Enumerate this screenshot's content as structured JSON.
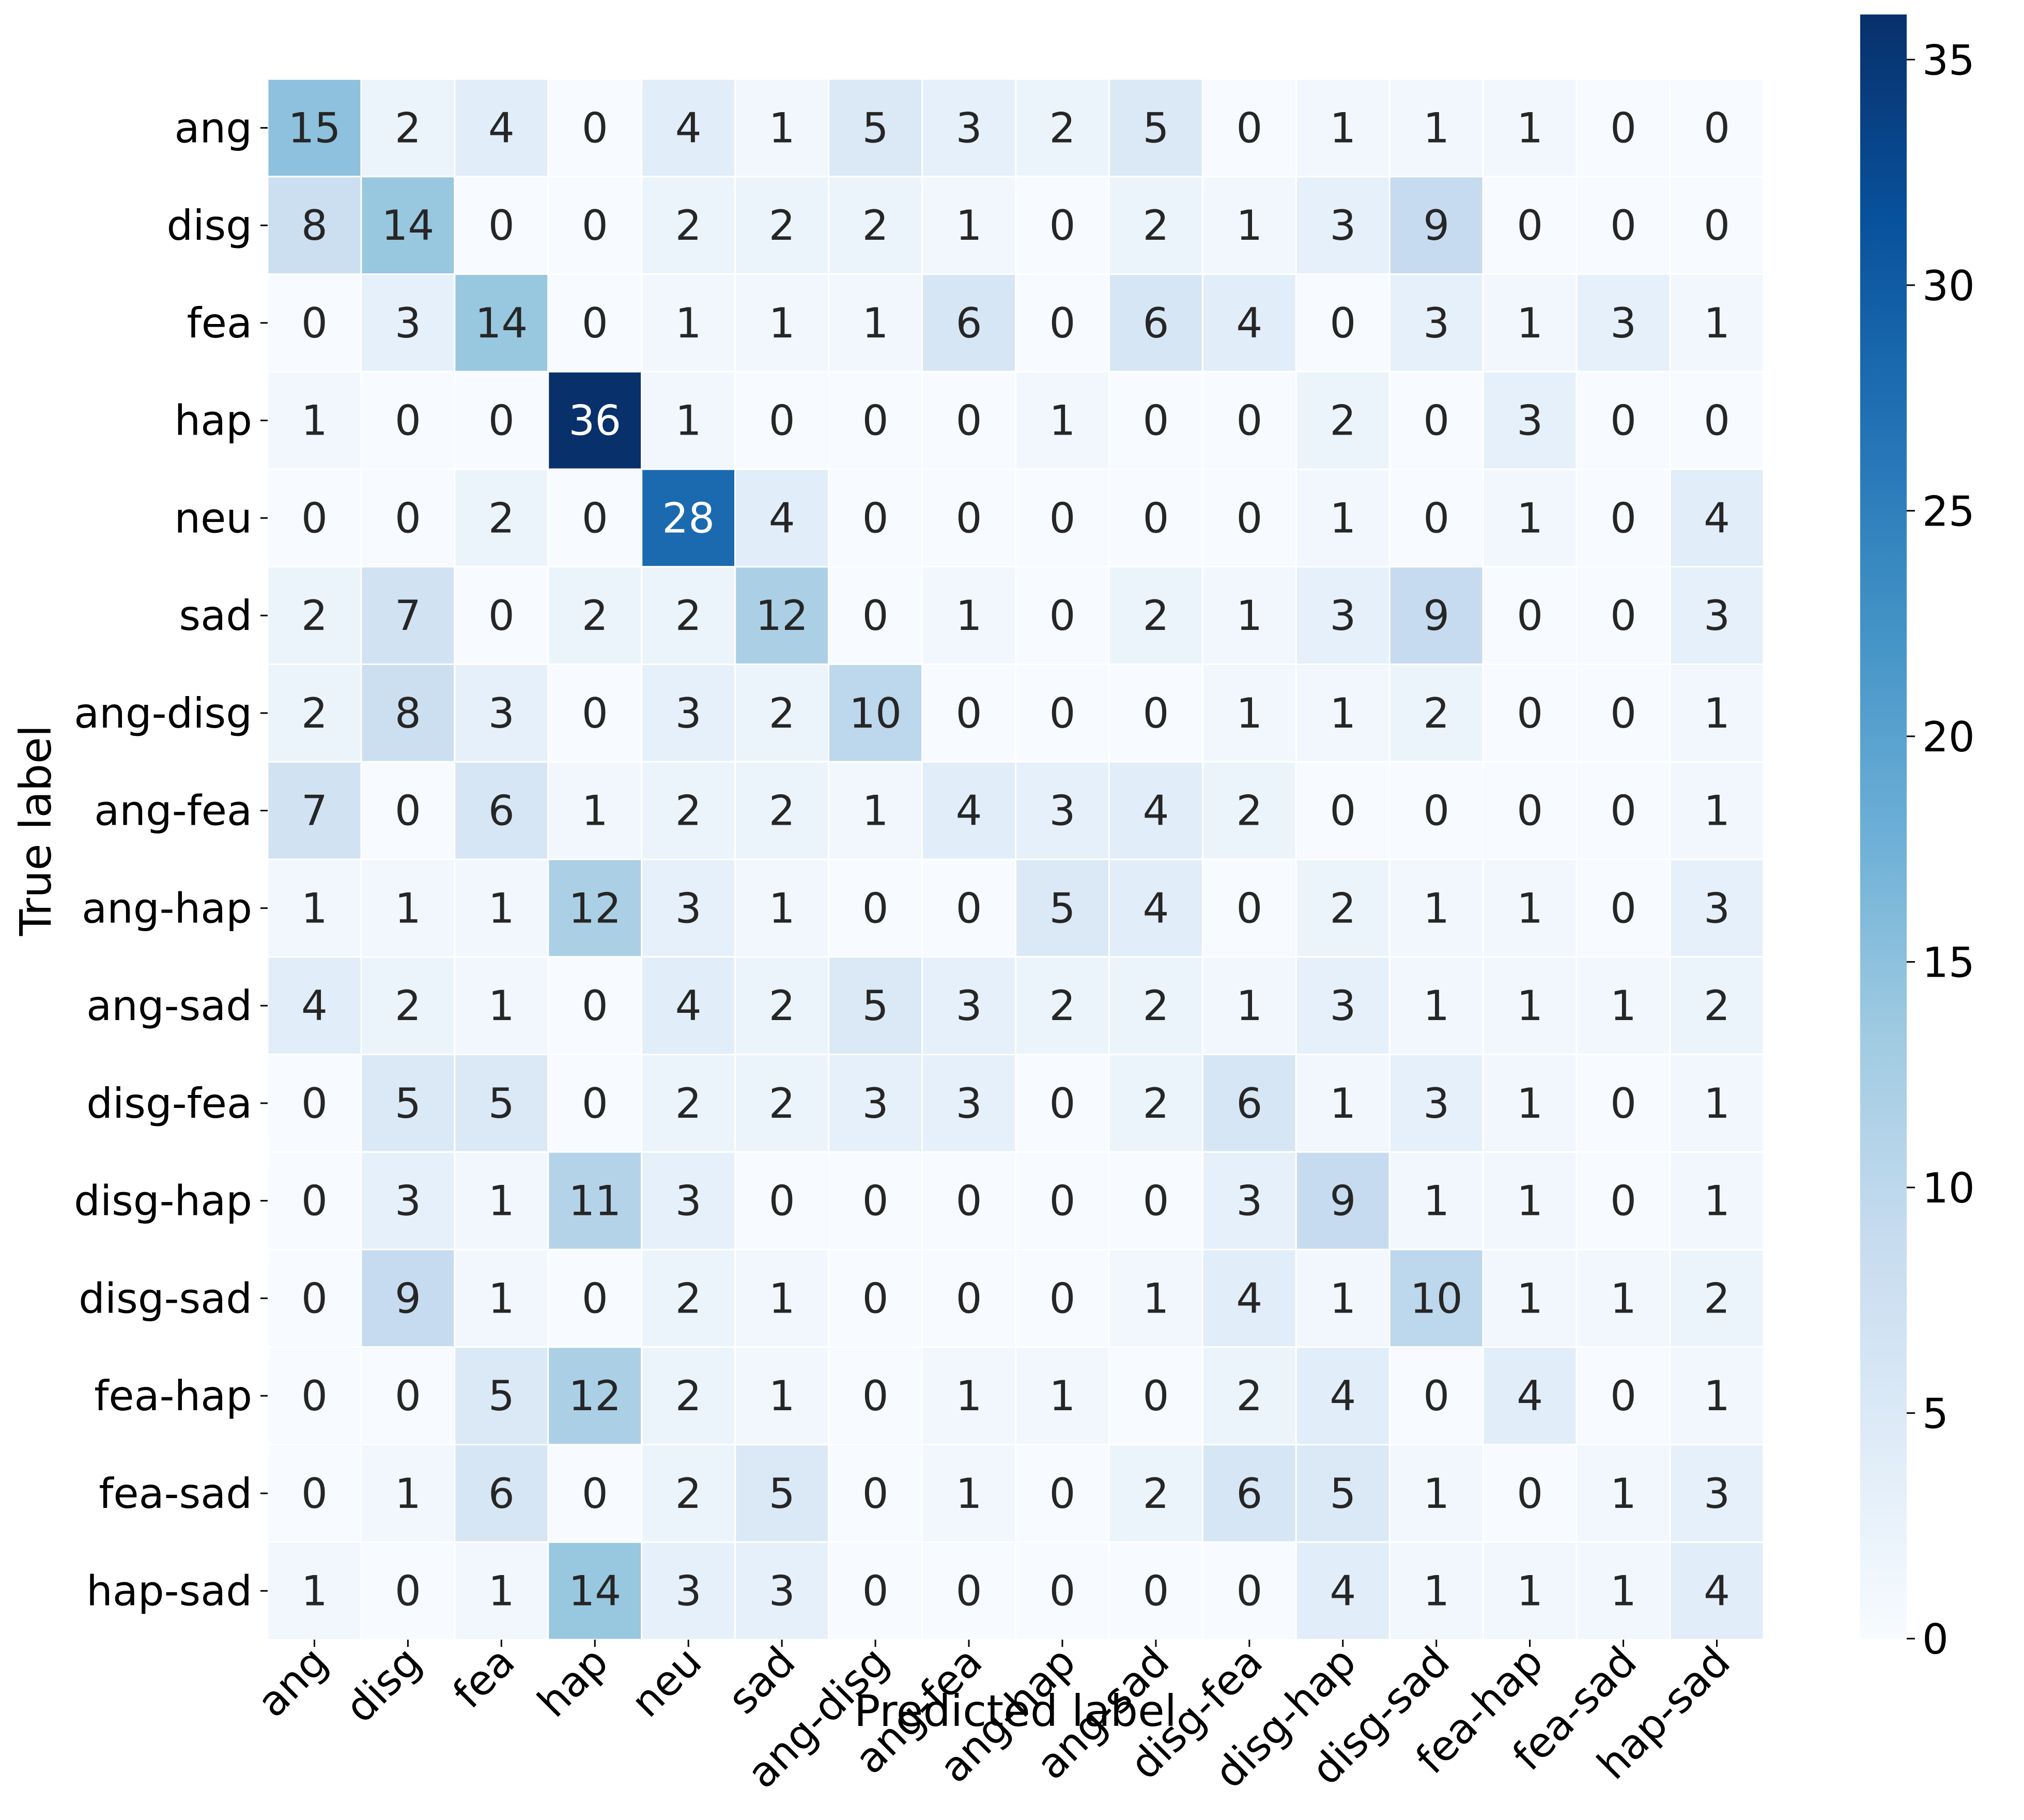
{
  "chart_data": {
    "type": "heatmap",
    "title": "",
    "xlabel": "Predicted label",
    "ylabel": "True label",
    "x_categories": [
      "ang",
      "disg",
      "fea",
      "hap",
      "neu",
      "sad",
      "ang-disg",
      "ang-fea",
      "ang-hap",
      "ang-sad",
      "disg-fea",
      "disg-hap",
      "disg-sad",
      "fea-hap",
      "fea-sad",
      "hap-sad"
    ],
    "y_categories": [
      "ang",
      "disg",
      "fea",
      "hap",
      "neu",
      "sad",
      "ang-disg",
      "ang-fea",
      "ang-hap",
      "ang-sad",
      "disg-fea",
      "disg-hap",
      "disg-sad",
      "fea-hap",
      "fea-sad",
      "hap-sad"
    ],
    "values": [
      [
        15,
        2,
        4,
        0,
        4,
        1,
        5,
        3,
        2,
        5,
        0,
        1,
        1,
        1,
        0,
        0
      ],
      [
        8,
        14,
        0,
        0,
        2,
        2,
        2,
        1,
        0,
        2,
        1,
        3,
        9,
        0,
        0,
        0
      ],
      [
        0,
        3,
        14,
        0,
        1,
        1,
        1,
        6,
        0,
        6,
        4,
        0,
        3,
        1,
        3,
        1
      ],
      [
        1,
        0,
        0,
        36,
        1,
        0,
        0,
        0,
        1,
        0,
        0,
        2,
        0,
        3,
        0,
        0
      ],
      [
        0,
        0,
        2,
        0,
        28,
        4,
        0,
        0,
        0,
        0,
        0,
        1,
        0,
        1,
        0,
        4
      ],
      [
        2,
        7,
        0,
        2,
        2,
        12,
        0,
        1,
        0,
        2,
        1,
        3,
        9,
        0,
        0,
        3
      ],
      [
        2,
        8,
        3,
        0,
        3,
        2,
        10,
        0,
        0,
        0,
        1,
        1,
        2,
        0,
        0,
        1
      ],
      [
        7,
        0,
        6,
        1,
        2,
        2,
        1,
        4,
        3,
        4,
        2,
        0,
        0,
        0,
        0,
        1
      ],
      [
        1,
        1,
        1,
        12,
        3,
        1,
        0,
        0,
        5,
        4,
        0,
        2,
        1,
        1,
        0,
        3
      ],
      [
        4,
        2,
        1,
        0,
        4,
        2,
        5,
        3,
        2,
        2,
        1,
        3,
        1,
        1,
        1,
        2
      ],
      [
        0,
        5,
        5,
        0,
        2,
        2,
        3,
        3,
        0,
        2,
        6,
        1,
        3,
        1,
        0,
        1
      ],
      [
        0,
        3,
        1,
        11,
        3,
        0,
        0,
        0,
        0,
        0,
        3,
        9,
        1,
        1,
        0,
        1
      ],
      [
        0,
        9,
        1,
        0,
        2,
        1,
        0,
        0,
        0,
        1,
        4,
        1,
        10,
        1,
        1,
        2
      ],
      [
        0,
        0,
        5,
        12,
        2,
        1,
        0,
        1,
        1,
        0,
        2,
        4,
        0,
        4,
        0,
        1
      ],
      [
        0,
        1,
        6,
        0,
        2,
        5,
        0,
        1,
        0,
        2,
        6,
        5,
        1,
        0,
        1,
        3
      ],
      [
        1,
        0,
        1,
        14,
        3,
        3,
        0,
        0,
        0,
        0,
        0,
        4,
        1,
        1,
        1,
        4
      ]
    ],
    "colorbar": {
      "min": 0,
      "max": 36,
      "ticks": [
        0,
        5,
        10,
        15,
        20,
        25,
        30,
        35
      ],
      "colormap": "Blues",
      "color_stops": [
        "#f7fbff",
        "#deebf7",
        "#c6dbef",
        "#9ecae1",
        "#6baed6",
        "#4292c6",
        "#2171b5",
        "#08519c",
        "#08306b"
      ]
    },
    "grid_line_color": "#ffffff",
    "annotation_colors": {
      "dark": "#262626",
      "light": "#ffffff"
    }
  }
}
